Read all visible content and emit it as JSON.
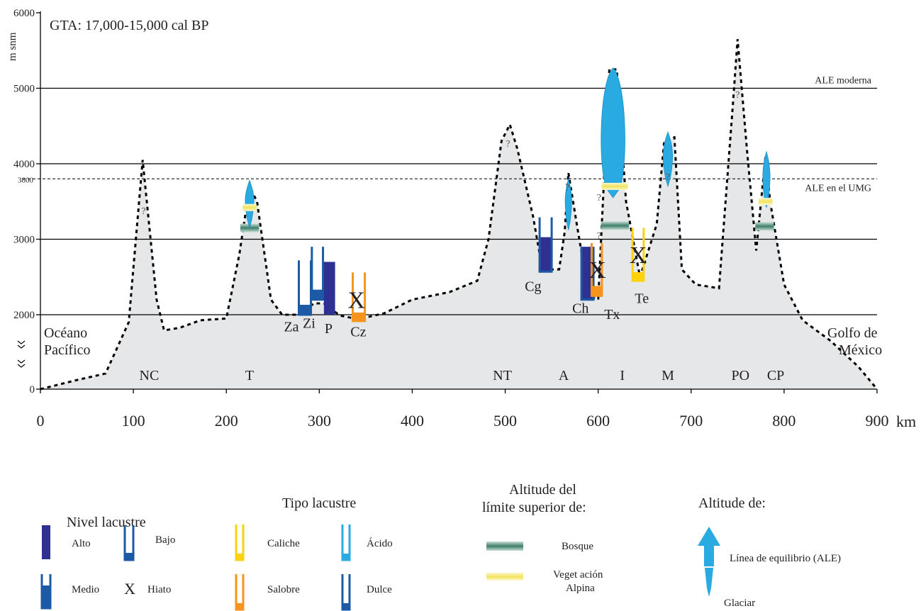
{
  "chart_data": {
    "type": "area",
    "title": "GTA: 17,000-15,000   cal BP",
    "ylabel": "m snm",
    "xunit": "km",
    "xlim": [
      0,
      900
    ],
    "ylim": [
      0,
      6000
    ],
    "x_ticks": [
      "0",
      "100",
      "200",
      "300",
      "400",
      "500",
      "600",
      "700",
      "800",
      "900"
    ],
    "y_ticks": [
      "0",
      "2000",
      "3000",
      "4000",
      "5000",
      "6000"
    ],
    "y_extra_tick": "3800",
    "y_break_marks": true,
    "reference_lines": [
      {
        "label": "ALE moderna",
        "y": 5000,
        "style": "solid"
      },
      {
        "label": "ALE en  el  UMG",
        "y": 3800,
        "style": "dashed"
      }
    ],
    "profile": [
      {
        "x": 0,
        "y": 0
      },
      {
        "x": 40,
        "y": 250
      },
      {
        "x": 70,
        "y": 420
      },
      {
        "x": 95,
        "y": 1800
      },
      {
        "x": 110,
        "y": 4050
      },
      {
        "x": 125,
        "y": 2200
      },
      {
        "x": 133,
        "y": 1580
      },
      {
        "x": 150,
        "y": 1650
      },
      {
        "x": 172,
        "y": 1850
      },
      {
        "x": 200,
        "y": 1900
      },
      {
        "x": 214,
        "y": 2800
      },
      {
        "x": 225,
        "y": 3700
      },
      {
        "x": 233,
        "y": 3500
      },
      {
        "x": 248,
        "y": 2200
      },
      {
        "x": 260,
        "y": 2000
      },
      {
        "x": 280,
        "y": 2000
      },
      {
        "x": 294,
        "y": 2150
      },
      {
        "x": 305,
        "y": 2150
      },
      {
        "x": 322,
        "y": 1980
      },
      {
        "x": 342,
        "y": 1880
      },
      {
        "x": 370,
        "y": 2020
      },
      {
        "x": 400,
        "y": 2200
      },
      {
        "x": 440,
        "y": 2300
      },
      {
        "x": 470,
        "y": 2450
      },
      {
        "x": 482,
        "y": 3000
      },
      {
        "x": 496,
        "y": 4300
      },
      {
        "x": 505,
        "y": 4520
      },
      {
        "x": 513,
        "y": 4200
      },
      {
        "x": 530,
        "y": 3300
      },
      {
        "x": 540,
        "y": 2600
      },
      {
        "x": 558,
        "y": 2600
      },
      {
        "x": 564,
        "y": 3100
      },
      {
        "x": 568,
        "y": 3880
      },
      {
        "x": 577,
        "y": 3200
      },
      {
        "x": 590,
        "y": 2250
      },
      {
        "x": 600,
        "y": 2200
      },
      {
        "x": 612,
        "y": 5250
      },
      {
        "x": 620,
        "y": 5250
      },
      {
        "x": 630,
        "y": 3500
      },
      {
        "x": 645,
        "y": 2500
      },
      {
        "x": 663,
        "y": 3200
      },
      {
        "x": 671,
        "y": 4300
      },
      {
        "x": 682,
        "y": 4350
      },
      {
        "x": 690,
        "y": 2600
      },
      {
        "x": 705,
        "y": 2400
      },
      {
        "x": 730,
        "y": 2350
      },
      {
        "x": 745,
        "y": 4800
      },
      {
        "x": 750,
        "y": 5650
      },
      {
        "x": 760,
        "y": 4200
      },
      {
        "x": 770,
        "y": 2850
      },
      {
        "x": 780,
        "y": 4100
      },
      {
        "x": 785,
        "y": 3500
      },
      {
        "x": 800,
        "y": 2400
      },
      {
        "x": 820,
        "y": 1850
      },
      {
        "x": 850,
        "y": 1300
      },
      {
        "x": 880,
        "y": 600
      },
      {
        "x": 900,
        "y": 0
      }
    ],
    "region_labels": [
      {
        "text": "NC",
        "x": 117,
        "y": 380
      },
      {
        "text": "T",
        "x": 225,
        "y": 380
      },
      {
        "text": "NT",
        "x": 497,
        "y": 380
      },
      {
        "text": "A",
        "x": 563,
        "y": 380
      },
      {
        "text": "I",
        "x": 626,
        "y": 380
      },
      {
        "text": "M",
        "x": 675,
        "y": 380
      },
      {
        "text": "PO",
        "x": 753,
        "y": 380
      },
      {
        "text": "CP",
        "x": 791,
        "y": 380
      }
    ],
    "edge_labels": {
      "left": [
        "Océano",
        "Pacífico"
      ],
      "right": [
        "Golfo de",
        "México"
      ]
    },
    "question_marks": [
      {
        "x": 111,
        "y": 3380
      },
      {
        "x": 503,
        "y": 4270
      },
      {
        "x": 567,
        "y": 3690
      },
      {
        "x": 601,
        "y": 3560
      },
      {
        "x": 601,
        "y": 3050
      },
      {
        "x": 675,
        "y": 3830
      },
      {
        "x": 750,
        "y": 4920
      }
    ],
    "lakes": [
      {
        "name": "Za",
        "x": 278,
        "width": 13,
        "bottom": 2000,
        "top": 2720,
        "level": "medio",
        "type": "dulce",
        "label_x": 270,
        "label_y": 1690
      },
      {
        "name": "Zi",
        "x": 292,
        "width": 12,
        "bottom": 2200,
        "top": 2900,
        "level": "medio",
        "type": "dulce",
        "label_x": 289,
        "label_y": 1780
      },
      {
        "name": "P",
        "x": 305,
        "width": 12,
        "bottom": 2000,
        "top": 2700,
        "level": "alto",
        "type": "dulce",
        "label_x": 310,
        "label_y": 1640
      },
      {
        "name": "Cz",
        "x": 336,
        "width": 13,
        "bottom": 1830,
        "top": 2560,
        "level": "bajo",
        "type": "salobre",
        "label_x": 342,
        "label_y": 1550
      },
      {
        "name": "Cg",
        "x": 537,
        "width": 13,
        "bottom": 2570,
        "top": 3290,
        "level": "alto",
        "type": "dulce",
        "label_x": 530,
        "label_y": 2380
      },
      {
        "name": "Ch",
        "x": 582,
        "width": 13,
        "bottom": 2200,
        "top": 2900,
        "level": "alto",
        "type": "dulce",
        "label_x": 581,
        "label_y": 2090
      },
      {
        "name": "Tx",
        "x": 593,
        "width": 11,
        "bottom": 2250,
        "top": 2950,
        "level": "medio",
        "type": "salobre",
        "label_x": 615,
        "label_y": 2010
      },
      {
        "name": "Te",
        "x": 637,
        "width": 12,
        "bottom": 2450,
        "top": 3150,
        "level": "bajo",
        "type": "caliche",
        "label_x": 647,
        "label_y": 2220
      }
    ],
    "hiatus_marks": [
      {
        "x": 340,
        "y": 2200
      },
      {
        "x": 599,
        "y": 2600
      },
      {
        "x": 643,
        "y": 2800
      }
    ],
    "glaciers": [
      {
        "x": 225,
        "top": 3780,
        "bottom": 3150,
        "w": 12
      },
      {
        "x": 568,
        "top": 3800,
        "bottom": 3120,
        "w": 9
      },
      {
        "x": 616,
        "top": 5270,
        "bottom": 3550,
        "w": 33
      },
      {
        "x": 675,
        "top": 4420,
        "bottom": 3700,
        "w": 13
      },
      {
        "x": 781,
        "top": 4160,
        "bottom": 3420,
        "w": 10
      }
    ],
    "forest_limits": [
      {
        "x": 225,
        "y": 3150,
        "w": 20
      },
      {
        "x": 618,
        "y": 3180,
        "w": 30
      },
      {
        "x": 779,
        "y": 3170,
        "w": 20
      }
    ],
    "alpine_limits": [
      {
        "x": 225,
        "y": 3420,
        "w": 15
      },
      {
        "x": 618,
        "y": 3700,
        "w": 28
      },
      {
        "x": 780,
        "y": 3500,
        "w": 15
      }
    ]
  },
  "legend": {
    "nivel": {
      "title": "Nivel lacustre",
      "alto": "Alto",
      "bajo": "Bajo",
      "medio": "Medio",
      "hiato_symbol": "X",
      "hiato": "Hiato"
    },
    "tipo": {
      "title": "Tipo lacustre",
      "caliche": "Caliche",
      "acido": "Ácido",
      "salobre": "Salobre",
      "dulce": "Dulce"
    },
    "limite": {
      "title1": "Altitude del",
      "title2": "límite superior  de:",
      "bosque": "Bosque",
      "veget1": "Veget ación",
      "veget2": "Alpina"
    },
    "altitud": {
      "title": "Altitude de:",
      "ale": "Línea de equilibrio (ALE)",
      "glaciar": "Glaciar"
    }
  },
  "colors": {
    "fill": "#e6e7e8",
    "dark_blue": "#2e3192",
    "mid_blue": "#1c5aa6",
    "light_blue": "#29aae1",
    "yellow": "#fcd20c",
    "orange": "#f7941d",
    "forest": "#3e7f6a",
    "alpine": "#f7ec86"
  }
}
